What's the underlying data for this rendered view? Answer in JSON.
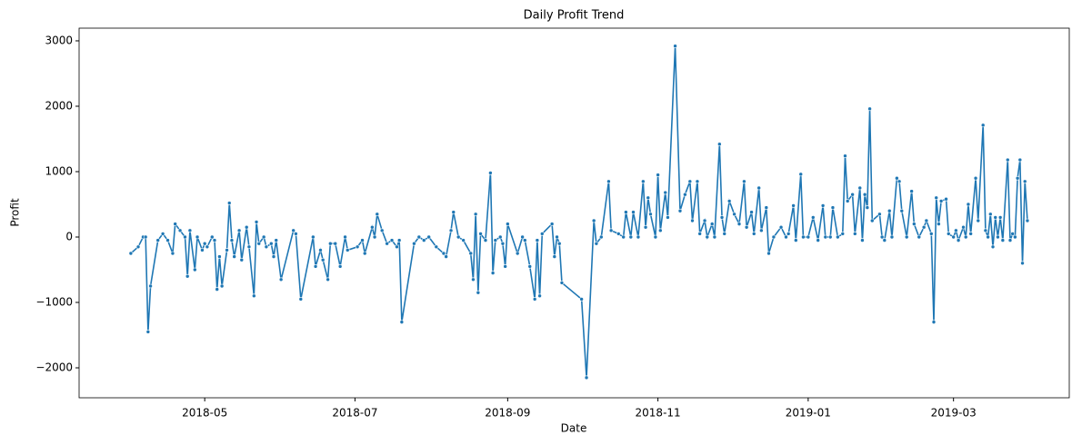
{
  "chart_data": {
    "type": "line",
    "title": "Daily Profit Trend",
    "x_label": "Date",
    "y_label": "Profit",
    "color": "#1f77b4",
    "x": [
      0,
      3,
      5,
      6,
      7,
      8,
      11,
      13,
      15,
      17,
      18,
      20,
      22,
      23,
      24,
      26,
      27,
      29,
      30,
      31,
      33,
      34,
      35,
      36,
      37,
      39,
      40,
      41,
      42,
      44,
      45,
      47,
      48,
      50,
      51,
      52,
      54,
      55,
      57,
      58,
      59,
      61,
      66,
      67,
      69,
      74,
      75,
      77,
      78,
      80,
      81,
      83,
      85,
      87,
      88,
      92,
      94,
      95,
      98,
      99,
      100,
      102,
      104,
      106,
      108,
      109,
      110,
      115,
      117,
      119,
      121,
      124,
      127,
      128,
      130,
      131,
      133,
      135,
      138,
      139,
      140,
      141,
      142,
      144,
      146,
      147,
      148,
      150,
      151,
      152,
      153,
      157,
      159,
      160,
      162,
      164,
      165,
      166,
      167,
      171,
      172,
      173,
      174,
      175,
      183,
      185,
      188,
      189,
      191,
      194,
      195,
      198,
      200,
      201,
      203,
      204,
      206,
      208,
      209,
      210,
      211,
      213,
      214,
      215,
      217,
      218,
      221,
      223,
      225,
      227,
      228,
      230,
      231,
      233,
      234,
      236,
      237,
      239,
      240,
      241,
      243,
      245,
      247,
      249,
      250,
      252,
      253,
      255,
      256,
      258,
      259,
      261,
      264,
      266,
      267,
      269,
      270,
      272,
      273,
      275,
      277,
      279,
      281,
      282,
      284,
      285,
      287,
      289,
      290,
      291,
      293,
      294,
      296,
      297,
      298,
      299,
      300,
      301,
      304,
      305,
      306,
      308,
      309,
      311,
      312,
      313,
      315,
      317,
      318,
      320,
      322,
      323,
      325,
      326,
      327,
      328,
      329,
      331,
      332,
      334,
      335,
      336,
      338,
      339,
      340,
      341,
      343,
      344,
      346,
      347,
      348,
      349,
      350,
      351,
      352,
      353,
      354,
      356,
      357,
      358,
      359,
      360,
      361,
      362,
      363,
      364
    ],
    "values": [
      -250,
      -150,
      0,
      0,
      -1450,
      -750,
      -50,
      50,
      -50,
      -250,
      200,
      100,
      0,
      -600,
      100,
      -500,
      0,
      -200,
      -100,
      -150,
      0,
      -50,
      -800,
      -300,
      -750,
      -200,
      520,
      -50,
      -300,
      100,
      -350,
      150,
      -150,
      -900,
      230,
      -100,
      0,
      -150,
      -100,
      -300,
      -50,
      -650,
      100,
      50,
      -950,
      0,
      -450,
      -200,
      -350,
      -650,
      -100,
      -100,
      -450,
      0,
      -200,
      -150,
      -50,
      -250,
      150,
      0,
      350,
      100,
      -100,
      -50,
      -150,
      -50,
      -1300,
      -100,
      0,
      -50,
      0,
      -150,
      -250,
      -300,
      100,
      380,
      0,
      -50,
      -250,
      -650,
      350,
      -850,
      50,
      -50,
      980,
      -550,
      -50,
      0,
      -100,
      -450,
      200,
      -250,
      0,
      -50,
      -450,
      -950,
      -50,
      -900,
      50,
      200,
      -300,
      0,
      -100,
      -700,
      -950,
      -2150,
      250,
      -100,
      0,
      850,
      100,
      50,
      0,
      380,
      0,
      380,
      0,
      850,
      150,
      600,
      350,
      0,
      950,
      100,
      680,
      300,
      2920,
      400,
      650,
      850,
      250,
      850,
      50,
      250,
      0,
      200,
      0,
      1420,
      300,
      50,
      550,
      350,
      200,
      850,
      150,
      380,
      50,
      750,
      100,
      450,
      -250,
      0,
      150,
      0,
      50,
      480,
      -50,
      960,
      0,
      0,
      300,
      -50,
      480,
      0,
      0,
      450,
      0,
      50,
      1240,
      550,
      650,
      50,
      750,
      -50,
      650,
      450,
      1960,
      250,
      350,
      0,
      -50,
      400,
      0,
      900,
      850,
      400,
      0,
      700,
      200,
      0,
      150,
      250,
      50,
      -1300,
      600,
      200,
      550,
      580,
      50,
      0,
      100,
      -50,
      150,
      0,
      500,
      50,
      900,
      250,
      1710,
      100,
      0,
      350,
      -150,
      300,
      0,
      300,
      -50,
      1180,
      -50,
      50,
      0,
      900,
      1180,
      -400,
      850,
      250
    ],
    "xlim": [
      -21,
      381
    ],
    "xticks": [
      {
        "value": 30,
        "label": "2018-05"
      },
      {
        "value": 91,
        "label": "2018-07"
      },
      {
        "value": 153,
        "label": "2018-09"
      },
      {
        "value": 214,
        "label": "2018-11"
      },
      {
        "value": 275,
        "label": "2019-01"
      },
      {
        "value": 334,
        "label": "2019-03"
      }
    ],
    "ylim": [
      -2458,
      3194
    ],
    "yticks": [
      {
        "value": -2000,
        "label": "−2000"
      },
      {
        "value": -1000,
        "label": "−1000"
      },
      0,
      1000,
      2000,
      3000
    ]
  }
}
